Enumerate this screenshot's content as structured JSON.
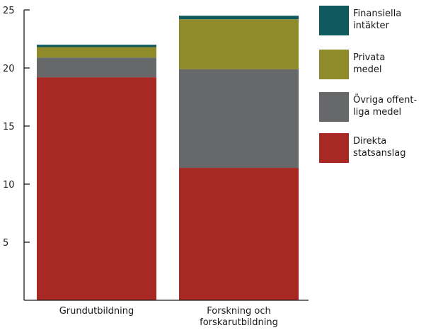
{
  "chart_data": {
    "type": "bar",
    "stacked": true,
    "categories": [
      [
        "Grundutbildning"
      ],
      [
        "Forskning och",
        "forskarutbildning"
      ]
    ],
    "series": [
      {
        "name": "Direkta statsanslag",
        "name_lines": [
          "Direkta",
          "statsanslag"
        ],
        "color": "#a82824",
        "values": [
          19.2,
          11.4
        ]
      },
      {
        "name": "Övriga offentliga medel",
        "name_lines": [
          "Övriga offent-",
          "liga medel"
        ],
        "color": "#66686a",
        "values": [
          1.7,
          8.5
        ]
      },
      {
        "name": "Privata medel",
        "name_lines": [
          "Privata",
          "medel"
        ],
        "color": "#8f8b2a",
        "values": [
          0.9,
          4.3
        ]
      },
      {
        "name": "Finansiella intäkter",
        "name_lines": [
          "Finansiella",
          "intäkter"
        ],
        "color": "#0f5a5e",
        "values": [
          0.2,
          0.3
        ]
      }
    ],
    "ylim": [
      0,
      25
    ],
    "yticks": [
      5,
      10,
      15,
      20,
      25
    ],
    "legend_position": "right",
    "grid": false
  }
}
